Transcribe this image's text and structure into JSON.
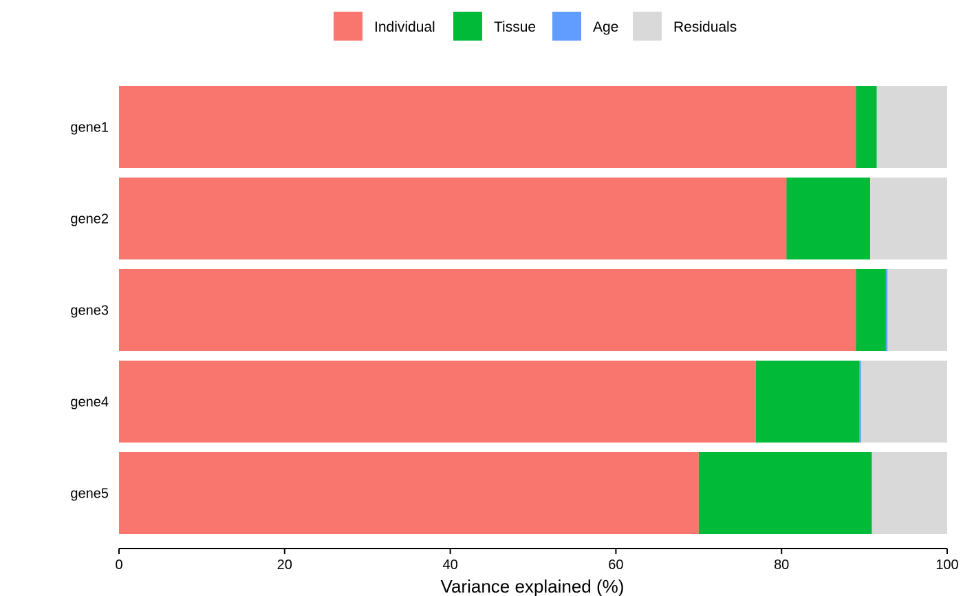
{
  "chart_data": {
    "type": "bar",
    "orientation": "horizontal",
    "stacked": true,
    "categories": [
      "gene1",
      "gene2",
      "gene3",
      "gene4",
      "gene5"
    ],
    "series": [
      {
        "name": "Individual",
        "color": "#F8766D",
        "values": [
          89.0,
          80.6,
          89.0,
          76.9,
          70.0
        ]
      },
      {
        "name": "Tissue",
        "color": "#00BA38",
        "values": [
          2.5,
          10.1,
          3.6,
          12.5,
          20.9
        ]
      },
      {
        "name": "Age",
        "color": "#619CFF",
        "values": [
          0.0,
          0.0,
          0.2,
          0.2,
          0.0
        ]
      },
      {
        "name": "Residuals",
        "color": "#D9D9D9",
        "values": [
          8.5,
          9.3,
          7.2,
          10.4,
          9.1
        ]
      }
    ],
    "xlabel": "Variance explained (%)",
    "ylabel": "",
    "xlim": [
      0,
      100
    ],
    "xticks": [
      0,
      20,
      40,
      60,
      80,
      100
    ],
    "xtick_labels": [
      "0",
      "20",
      "40",
      "60",
      "80",
      "100"
    ],
    "legend_position": "top",
    "grid": false
  }
}
